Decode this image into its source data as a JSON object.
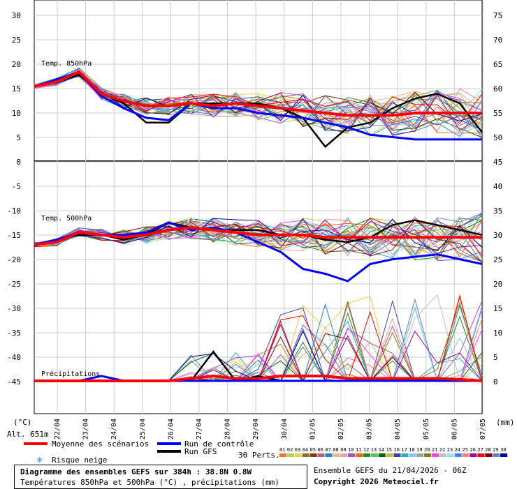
{
  "chart_data": {
    "type": "line",
    "title": "Diagramme des ensembles GEFS sur 384h : 38.8N 0.8W",
    "subtitle": "Températures 850hPa et 500hPa (°C) , précipitations (mm)",
    "x_tick_labels": [
      "22/04",
      "23/04",
      "24/04",
      "25/04",
      "26/04",
      "27/04",
      "28/04",
      "29/04",
      "30/04",
      "01/05",
      "02/05",
      "03/05",
      "04/05",
      "05/05",
      "06/05",
      "07/05"
    ],
    "left_axis_ticks": [
      "30",
      "25",
      "20",
      "15",
      "10",
      "5",
      "0",
      "-5",
      "-10",
      "-15",
      "-20",
      "-25",
      "-30",
      "-35",
      "-40",
      "-45"
    ],
    "right_axis_ticks": [
      "75",
      "70",
      "65",
      "60",
      "55",
      "50",
      "45",
      "40",
      "35",
      "30",
      "25",
      "20",
      "15",
      "10",
      "5",
      "0"
    ],
    "left_unit": "(°C)",
    "right_unit": "(mm)",
    "altitude": "Alt. 651m",
    "panels": [
      {
        "name": "Temp. 850hPa",
        "y_range": [
          0,
          32
        ]
      },
      {
        "name": "Temp. 500hPa",
        "y_range": [
          -45,
          -0.5
        ]
      },
      {
        "name": "Précipitations",
        "y_range": [
          0,
          45
        ]
      }
    ],
    "series": [
      {
        "name": "Moyenne des scénarios",
        "color": "#ff0000",
        "t850": [
          15.5,
          16.5,
          18.5,
          14,
          12.5,
          11.5,
          11.5,
          12,
          11.5,
          12,
          11.5,
          11,
          10.5,
          10,
          9.5,
          9.5,
          9.5,
          10,
          10,
          10,
          10
        ],
        "t500": [
          -17,
          -16.5,
          -14.5,
          -15,
          -15.5,
          -15,
          -14,
          -13.5,
          -14,
          -14.5,
          -15,
          -15,
          -15,
          -15.5,
          -15.5,
          -15.5,
          -15.5,
          -15.5,
          -15.5,
          -15.5,
          -15.5
        ],
        "precip": [
          0,
          0,
          0,
          0,
          0,
          0,
          0,
          0.5,
          1,
          0.5,
          0.5,
          1,
          1,
          1,
          0.5,
          0.5,
          0.5,
          0.5,
          0.5,
          0.3,
          0
        ]
      },
      {
        "name": "Run de contrôle",
        "color": "#0000ff",
        "t850": [
          15.5,
          17,
          18.5,
          13.5,
          11,
          9,
          8.5,
          12,
          11,
          11,
          10,
          9.5,
          9,
          8,
          7,
          5.5,
          5,
          4.5,
          4.5,
          4.5,
          4.5
        ],
        "t500": [
          -17,
          -16,
          -14.5,
          -15,
          -15,
          -14.5,
          -12.5,
          -14,
          -13.5,
          -14.5,
          -16.5,
          -18.5,
          -22,
          -23,
          -24.5,
          -21,
          -20,
          -19.5,
          -19,
          -20,
          -21
        ],
        "precip": [
          0,
          0,
          0,
          1,
          0,
          0,
          0,
          0,
          0,
          0,
          0,
          0,
          0,
          0,
          0,
          0,
          0,
          0,
          0,
          0,
          0
        ]
      },
      {
        "name": "Run GFS",
        "color": "#000000",
        "t850": [
          15.5,
          16.5,
          18,
          14,
          12,
          8,
          8,
          12,
          12,
          12,
          12,
          11,
          9,
          3,
          7,
          8,
          11,
          13,
          14,
          12,
          6
        ],
        "t500": [
          -17,
          -16,
          -15,
          -15,
          -16,
          -15,
          -12.5,
          -13.5,
          -14,
          -14,
          -14,
          -15,
          -15,
          -16,
          -16.5,
          -15.5,
          -13,
          -12,
          -13,
          -14,
          -15
        ],
        "precip": [
          0,
          0,
          0,
          0,
          0,
          0,
          0,
          0,
          6,
          0,
          1,
          0,
          0,
          0,
          0,
          0,
          0,
          0,
          0,
          0,
          0
        ]
      }
    ],
    "members_count": 30,
    "member_labels": [
      "01",
      "02",
      "03",
      "04",
      "05",
      "06",
      "07",
      "08",
      "09",
      "10",
      "11",
      "12",
      "13",
      "14",
      "15",
      "16",
      "17",
      "18",
      "19",
      "20",
      "21",
      "22",
      "23",
      "24",
      "25",
      "26",
      "27",
      "28",
      "29",
      "30"
    ],
    "member_colors": [
      "#e87722",
      "#b3d35a",
      "#f0d040",
      "#8a6d2b",
      "#7b3f00",
      "#b85c8a",
      "#2080d0",
      "#e0c080",
      "#f0a0a0",
      "#a050c0",
      "#ff6600",
      "#228b22",
      "#60c060",
      "#006400",
      "#c0c040",
      "#4040a0",
      "#20b0b0",
      "#90c0ff",
      "#a0a0a0",
      "#808000",
      "#ff40ff",
      "#c0c0c0",
      "#a0e0e0",
      "#4080ff",
      "#ff8080",
      "#a000a0",
      "#ff0000",
      "#800000",
      "#6080c0",
      "#0000a0"
    ]
  },
  "legend": {
    "mean": "Moyenne des scénarios",
    "control": "Run de contrôle",
    "gfs": "Run GFS",
    "snow": "Risque neige",
    "perts": "30 Perts."
  },
  "footer": {
    "title": "Diagramme des ensembles GEFS sur 384h : 38.8N 0.8W",
    "subtitle": "Températures 850hPa et 500hPa (°C) , précipitations (mm)",
    "run": "Ensemble GEFS du 21/04/2026 - 06Z",
    "copyright": "Copyright 2026 Meteociel.fr"
  }
}
